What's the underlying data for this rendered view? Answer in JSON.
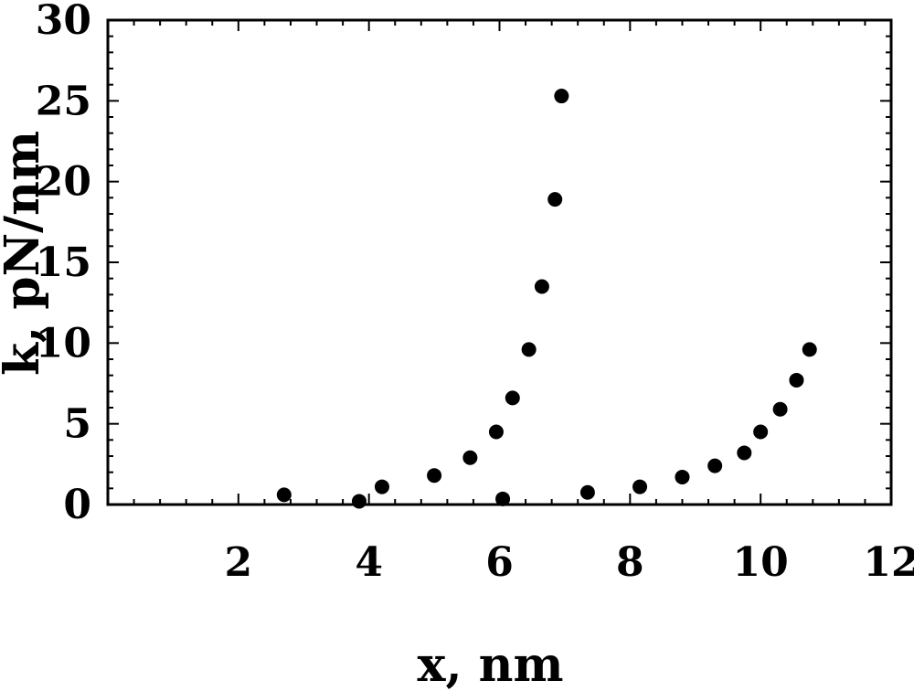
{
  "chart_data": {
    "type": "scatter",
    "xlabel": "x, nm",
    "ylabel": "k, pN/nm",
    "xlim": [
      0,
      12
    ],
    "ylim": [
      0,
      30
    ],
    "xticks": [
      2,
      4,
      6,
      8,
      10,
      12
    ],
    "yticks": [
      0,
      5,
      10,
      15,
      20,
      25,
      30
    ],
    "grid": false,
    "marker_color": "#000000",
    "series": [
      {
        "points": [
          {
            "x": 2.7,
            "y": 0.6
          },
          {
            "x": 3.85,
            "y": 0.2
          },
          {
            "x": 4.2,
            "y": 1.1
          },
          {
            "x": 5.0,
            "y": 1.8
          },
          {
            "x": 5.55,
            "y": 2.9
          },
          {
            "x": 5.95,
            "y": 4.5
          },
          {
            "x": 6.05,
            "y": 0.35
          },
          {
            "x": 6.2,
            "y": 6.6
          },
          {
            "x": 6.45,
            "y": 9.6
          },
          {
            "x": 6.65,
            "y": 13.5
          },
          {
            "x": 6.85,
            "y": 18.9
          },
          {
            "x": 6.95,
            "y": 25.3
          },
          {
            "x": 7.35,
            "y": 0.75
          },
          {
            "x": 8.15,
            "y": 1.1
          },
          {
            "x": 8.8,
            "y": 1.7
          },
          {
            "x": 9.3,
            "y": 2.4
          },
          {
            "x": 9.75,
            "y": 3.2
          },
          {
            "x": 10.0,
            "y": 4.5
          },
          {
            "x": 10.3,
            "y": 5.9
          },
          {
            "x": 10.55,
            "y": 7.7
          },
          {
            "x": 10.75,
            "y": 9.6
          }
        ]
      }
    ]
  }
}
